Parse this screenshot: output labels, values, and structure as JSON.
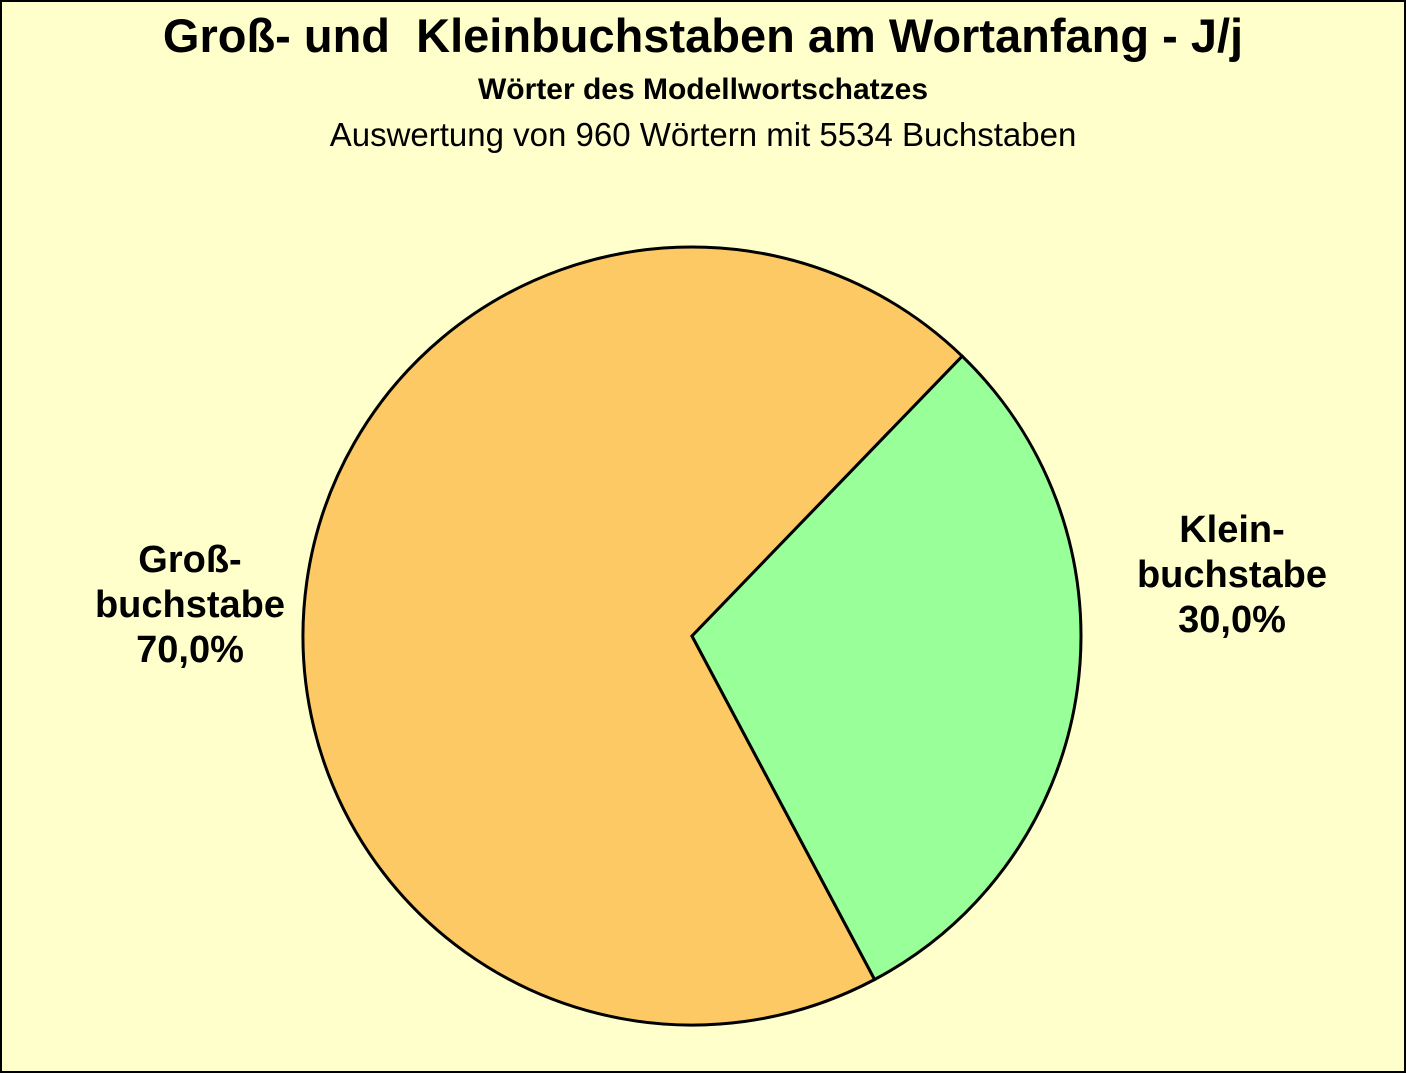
{
  "chart_data": {
    "type": "pie",
    "title": "Groß- und  Kleinbuchstaben am Wortanfang - J/j",
    "subtitle": "Wörter des Modellwortschatzes",
    "annotation": "Auswertung von 960 Wörtern mit 5534 Buchstaben",
    "unit": "percent",
    "total": 100.0,
    "start_angle_deg": 62,
    "direction": "clockwise",
    "stroke_color": "#000000",
    "stroke_width": 3,
    "background_color": "#FFFFCC",
    "legend_position": "none",
    "slices": [
      {
        "name": "Großbuchstabe",
        "value": 70.0,
        "value_label": "70,0%",
        "color": "#FDC964",
        "callout": "Groß-\nbuchstabe\n70,0%",
        "callout_side": "left"
      },
      {
        "name": "Kleinbuchstabe",
        "value": 30.0,
        "value_label": "30,0%",
        "color": "#99FF99",
        "callout": "Klein-\nbuchstabe\n30,0%",
        "callout_side": "right"
      }
    ]
  }
}
